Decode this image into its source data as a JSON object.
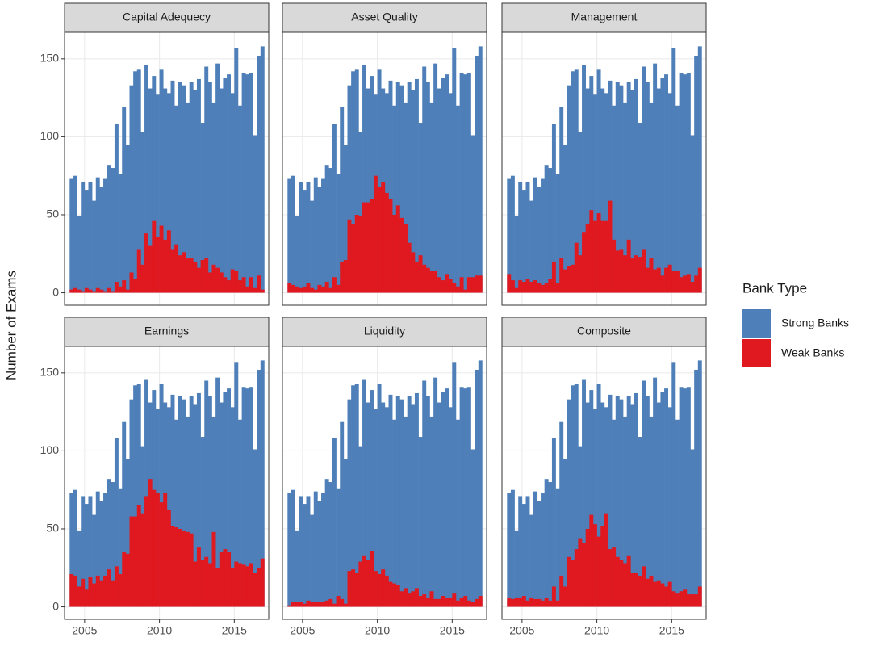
{
  "ylabel": "Number of Exams",
  "legend_title": "Bank Type",
  "chart_data": [
    {
      "type": "histogram",
      "title": "Capital Adequecy",
      "xlim": [
        2003.66,
        2017.3
      ],
      "ylim": [
        -8,
        167
      ],
      "xticks": [
        2005,
        2010,
        2015
      ],
      "yticks": [
        0,
        50,
        100,
        150
      ],
      "grid": true,
      "bins": [
        2004,
        2004.25,
        2004.5,
        2004.75,
        2005,
        2005.25,
        2005.5,
        2005.75,
        2006,
        2006.25,
        2006.5,
        2006.75,
        2007,
        2007.25,
        2007.5,
        2007.75,
        2008,
        2008.25,
        2008.5,
        2008.75,
        2009,
        2009.25,
        2009.5,
        2009.75,
        2010,
        2010.25,
        2010.5,
        2010.75,
        2011,
        2011.25,
        2011.5,
        2011.75,
        2012,
        2012.25,
        2012.5,
        2012.75,
        2013,
        2013.25,
        2013.5,
        2013.75,
        2014,
        2014.25,
        2014.5,
        2014.75,
        2015,
        2015.25,
        2015.5,
        2015.75,
        2016,
        2016.25,
        2016.5,
        2016.75,
        2017
      ],
      "series": [
        {
          "name": "Strong Banks",
          "color": "#4e7fb8",
          "values": [
            73,
            75,
            49,
            71,
            66,
            71,
            59,
            74,
            68,
            73,
            82,
            80,
            108,
            76,
            119,
            95,
            133,
            142,
            143,
            103,
            146,
            131,
            139,
            127,
            143,
            131,
            128,
            136,
            120,
            135,
            133,
            122,
            135,
            130,
            137,
            109,
            145,
            135,
            122,
            147,
            131,
            138,
            140,
            128,
            157,
            120,
            141,
            140,
            141,
            101,
            152,
            158
          ]
        },
        {
          "name": "Weak Banks",
          "color": "#e0181f",
          "values": [
            2,
            3,
            2,
            1,
            3,
            2,
            1,
            3,
            2,
            1,
            3,
            1,
            7,
            4,
            8,
            2,
            13,
            9,
            28,
            18,
            38,
            30,
            46,
            36,
            43,
            34,
            40,
            28,
            31,
            24,
            26,
            22,
            22,
            20,
            16,
            21,
            22,
            13,
            18,
            16,
            13,
            10,
            8,
            15,
            14,
            8,
            10,
            4,
            10,
            3,
            11,
            2
          ]
        }
      ]
    },
    {
      "type": "histogram",
      "title": "Asset Quality",
      "xlim": [
        2003.66,
        2017.3
      ],
      "ylim": [
        -8,
        167
      ],
      "xticks": [
        2005,
        2010,
        2015
      ],
      "yticks": [
        0,
        50,
        100,
        150
      ],
      "grid": true,
      "bins": [
        2004,
        2004.25,
        2004.5,
        2004.75,
        2005,
        2005.25,
        2005.5,
        2005.75,
        2006,
        2006.25,
        2006.5,
        2006.75,
        2007,
        2007.25,
        2007.5,
        2007.75,
        2008,
        2008.25,
        2008.5,
        2008.75,
        2009,
        2009.25,
        2009.5,
        2009.75,
        2010,
        2010.25,
        2010.5,
        2010.75,
        2011,
        2011.25,
        2011.5,
        2011.75,
        2012,
        2012.25,
        2012.5,
        2012.75,
        2013,
        2013.25,
        2013.5,
        2013.75,
        2014,
        2014.25,
        2014.5,
        2014.75,
        2015,
        2015.25,
        2015.5,
        2015.75,
        2016,
        2016.25,
        2016.5,
        2016.75,
        2017
      ],
      "series": [
        {
          "name": "Strong Banks",
          "color": "#4e7fb8",
          "values": [
            73,
            75,
            49,
            71,
            66,
            71,
            59,
            74,
            68,
            73,
            82,
            80,
            108,
            76,
            119,
            95,
            133,
            142,
            143,
            103,
            146,
            131,
            139,
            127,
            143,
            131,
            128,
            136,
            120,
            135,
            133,
            122,
            135,
            130,
            137,
            109,
            145,
            135,
            122,
            147,
            131,
            138,
            140,
            128,
            157,
            120,
            141,
            140,
            141,
            101,
            152,
            158
          ]
        },
        {
          "name": "Weak Banks",
          "color": "#e0181f",
          "values": [
            6,
            5,
            4,
            3,
            4,
            6,
            3,
            2,
            5,
            4,
            7,
            3,
            10,
            5,
            20,
            21,
            47,
            44,
            50,
            49,
            58,
            58,
            60,
            75,
            68,
            71,
            64,
            60,
            50,
            56,
            48,
            44,
            32,
            26,
            20,
            24,
            18,
            16,
            14,
            14,
            10,
            8,
            12,
            9,
            6,
            4,
            10,
            2,
            10,
            10,
            11,
            11
          ]
        }
      ]
    },
    {
      "type": "histogram",
      "title": "Management",
      "xlim": [
        2003.66,
        2017.3
      ],
      "ylim": [
        -8,
        167
      ],
      "xticks": [
        2005,
        2010,
        2015
      ],
      "yticks": [
        0,
        50,
        100,
        150
      ],
      "grid": true,
      "bins": [
        2004,
        2004.25,
        2004.5,
        2004.75,
        2005,
        2005.25,
        2005.5,
        2005.75,
        2006,
        2006.25,
        2006.5,
        2006.75,
        2007,
        2007.25,
        2007.5,
        2007.75,
        2008,
        2008.25,
        2008.5,
        2008.75,
        2009,
        2009.25,
        2009.5,
        2009.75,
        2010,
        2010.25,
        2010.5,
        2010.75,
        2011,
        2011.25,
        2011.5,
        2011.75,
        2012,
        2012.25,
        2012.5,
        2012.75,
        2013,
        2013.25,
        2013.5,
        2013.75,
        2014,
        2014.25,
        2014.5,
        2014.75,
        2015,
        2015.25,
        2015.5,
        2015.75,
        2016,
        2016.25,
        2016.5,
        2016.75,
        2017
      ],
      "series": [
        {
          "name": "Strong Banks",
          "color": "#4e7fb8",
          "values": [
            73,
            75,
            49,
            71,
            66,
            71,
            59,
            74,
            68,
            73,
            82,
            80,
            108,
            76,
            119,
            95,
            133,
            142,
            143,
            103,
            146,
            131,
            139,
            127,
            143,
            131,
            128,
            136,
            120,
            135,
            133,
            122,
            135,
            130,
            137,
            109,
            145,
            135,
            122,
            147,
            131,
            138,
            140,
            128,
            157,
            120,
            141,
            140,
            141,
            101,
            152,
            158
          ]
        },
        {
          "name": "Weak Banks",
          "color": "#e0181f",
          "values": [
            12,
            8,
            3,
            8,
            7,
            9,
            7,
            8,
            6,
            5,
            6,
            9,
            20,
            6,
            22,
            15,
            17,
            18,
            32,
            24,
            39,
            44,
            53,
            46,
            51,
            46,
            46,
            59,
            34,
            27,
            28,
            24,
            34,
            22,
            24,
            23,
            28,
            16,
            22,
            15,
            16,
            11,
            16,
            18,
            14,
            14,
            10,
            11,
            12,
            7,
            11,
            16
          ]
        }
      ]
    },
    {
      "type": "histogram",
      "title": "Earnings",
      "xlim": [
        2003.66,
        2017.3
      ],
      "ylim": [
        -8,
        167
      ],
      "xticks": [
        2005,
        2010,
        2015
      ],
      "yticks": [
        0,
        50,
        100,
        150
      ],
      "grid": true,
      "bins": [
        2004,
        2004.25,
        2004.5,
        2004.75,
        2005,
        2005.25,
        2005.5,
        2005.75,
        2006,
        2006.25,
        2006.5,
        2006.75,
        2007,
        2007.25,
        2007.5,
        2007.75,
        2008,
        2008.25,
        2008.5,
        2008.75,
        2009,
        2009.25,
        2009.5,
        2009.75,
        2010,
        2010.25,
        2010.5,
        2010.75,
        2011,
        2011.25,
        2011.5,
        2011.75,
        2012,
        2012.25,
        2012.5,
        2012.75,
        2013,
        2013.25,
        2013.5,
        2013.75,
        2014,
        2014.25,
        2014.5,
        2014.75,
        2015,
        2015.25,
        2015.5,
        2015.75,
        2016,
        2016.25,
        2016.5,
        2016.75,
        2017
      ],
      "series": [
        {
          "name": "Strong Banks",
          "color": "#4e7fb8",
          "values": [
            73,
            75,
            49,
            71,
            66,
            71,
            59,
            74,
            68,
            73,
            82,
            80,
            108,
            76,
            119,
            95,
            133,
            142,
            143,
            103,
            146,
            131,
            139,
            127,
            143,
            131,
            128,
            136,
            120,
            135,
            133,
            122,
            135,
            130,
            137,
            109,
            145,
            135,
            122,
            147,
            131,
            138,
            140,
            128,
            157,
            120,
            141,
            140,
            141,
            101,
            152,
            158
          ]
        },
        {
          "name": "Weak Banks",
          "color": "#e0181f",
          "values": [
            21,
            20,
            13,
            18,
            11,
            19,
            15,
            20,
            17,
            20,
            24,
            17,
            26,
            21,
            35,
            34,
            58,
            58,
            65,
            60,
            71,
            82,
            75,
            73,
            67,
            73,
            62,
            52,
            51,
            50,
            49,
            48,
            47,
            29,
            38,
            30,
            32,
            28,
            48,
            25,
            35,
            37,
            35,
            25,
            29,
            28,
            27,
            26,
            28,
            22,
            25,
            31
          ]
        }
      ]
    },
    {
      "type": "histogram",
      "title": "Liquidity",
      "xlim": [
        2003.66,
        2017.3
      ],
      "ylim": [
        -8,
        167
      ],
      "xticks": [
        2005,
        2010,
        2015
      ],
      "yticks": [
        0,
        50,
        100,
        150
      ],
      "grid": true,
      "bins": [
        2004,
        2004.25,
        2004.5,
        2004.75,
        2005,
        2005.25,
        2005.5,
        2005.75,
        2006,
        2006.25,
        2006.5,
        2006.75,
        2007,
        2007.25,
        2007.5,
        2007.75,
        2008,
        2008.25,
        2008.5,
        2008.75,
        2009,
        2009.25,
        2009.5,
        2009.75,
        2010,
        2010.25,
        2010.5,
        2010.75,
        2011,
        2011.25,
        2011.5,
        2011.75,
        2012,
        2012.25,
        2012.5,
        2012.75,
        2013,
        2013.25,
        2013.5,
        2013.75,
        2014,
        2014.25,
        2014.5,
        2014.75,
        2015,
        2015.25,
        2015.5,
        2015.75,
        2016,
        2016.25,
        2016.5,
        2016.75,
        2017
      ],
      "series": [
        {
          "name": "Strong Banks",
          "color": "#4e7fb8",
          "values": [
            73,
            75,
            49,
            71,
            66,
            71,
            59,
            74,
            68,
            73,
            82,
            80,
            108,
            76,
            119,
            95,
            133,
            142,
            143,
            103,
            146,
            131,
            139,
            127,
            143,
            131,
            128,
            136,
            120,
            135,
            133,
            122,
            135,
            130,
            137,
            109,
            145,
            135,
            122,
            147,
            131,
            138,
            140,
            128,
            157,
            120,
            141,
            140,
            141,
            101,
            152,
            158
          ]
        },
        {
          "name": "Weak Banks",
          "color": "#e0181f",
          "values": [
            1,
            3,
            3,
            3,
            2,
            4,
            3,
            3,
            3,
            3,
            4,
            5,
            2,
            7,
            5,
            2,
            23,
            24,
            22,
            29,
            33,
            30,
            36,
            23,
            21,
            24,
            20,
            16,
            15,
            14,
            10,
            12,
            9,
            10,
            12,
            7,
            8,
            6,
            10,
            5,
            5,
            7,
            6,
            6,
            9,
            4,
            6,
            7,
            4,
            3,
            5,
            7
          ]
        }
      ]
    },
    {
      "type": "histogram",
      "title": "Composite",
      "xlim": [
        2003.66,
        2017.3
      ],
      "ylim": [
        -8,
        167
      ],
      "xticks": [
        2005,
        2010,
        2015
      ],
      "yticks": [
        0,
        50,
        100,
        150
      ],
      "grid": true,
      "bins": [
        2004,
        2004.25,
        2004.5,
        2004.75,
        2005,
        2005.25,
        2005.5,
        2005.75,
        2006,
        2006.25,
        2006.5,
        2006.75,
        2007,
        2007.25,
        2007.5,
        2007.75,
        2008,
        2008.25,
        2008.5,
        2008.75,
        2009,
        2009.25,
        2009.5,
        2009.75,
        2010,
        2010.25,
        2010.5,
        2010.75,
        2011,
        2011.25,
        2011.5,
        2011.75,
        2012,
        2012.25,
        2012.5,
        2012.75,
        2013,
        2013.25,
        2013.5,
        2013.75,
        2014,
        2014.25,
        2014.5,
        2014.75,
        2015,
        2015.25,
        2015.5,
        2015.75,
        2016,
        2016.25,
        2016.5,
        2016.75,
        2017
      ],
      "series": [
        {
          "name": "Strong Banks",
          "color": "#4e7fb8",
          "values": [
            73,
            75,
            49,
            71,
            66,
            71,
            59,
            74,
            68,
            73,
            82,
            80,
            108,
            76,
            119,
            95,
            133,
            142,
            143,
            103,
            146,
            131,
            139,
            127,
            143,
            131,
            128,
            136,
            120,
            135,
            133,
            122,
            135,
            130,
            137,
            109,
            145,
            135,
            122,
            147,
            131,
            138,
            140,
            128,
            157,
            120,
            141,
            140,
            141,
            101,
            152,
            158
          ]
        },
        {
          "name": "Weak Banks",
          "color": "#e0181f",
          "values": [
            6,
            5,
            6,
            6,
            7,
            4,
            6,
            5,
            5,
            4,
            6,
            4,
            13,
            4,
            20,
            13,
            32,
            30,
            37,
            44,
            41,
            50,
            59,
            53,
            45,
            52,
            60,
            37,
            38,
            32,
            30,
            28,
            33,
            22,
            22,
            20,
            26,
            18,
            20,
            16,
            17,
            15,
            13,
            16,
            10,
            9,
            10,
            11,
            8,
            8,
            8,
            13
          ]
        }
      ]
    }
  ]
}
